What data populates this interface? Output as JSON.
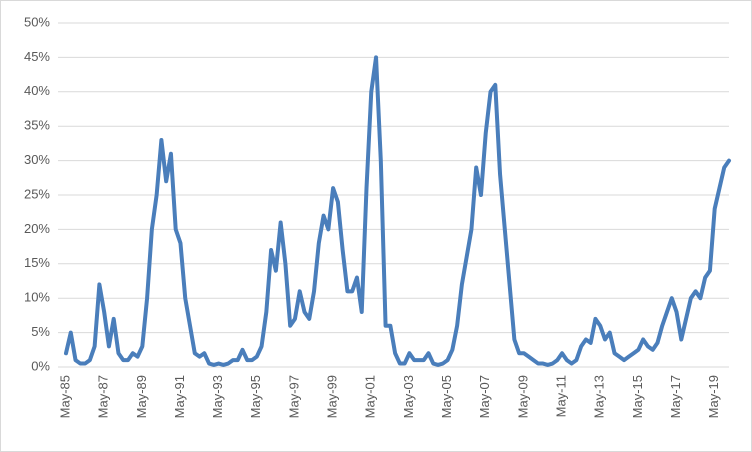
{
  "chart_data": {
    "type": "line",
    "color": "#4a7ebb",
    "grid": true,
    "ylim": [
      0,
      50
    ],
    "yticks": [
      {
        "value": 0,
        "label": "0%"
      },
      {
        "value": 5,
        "label": "5%"
      },
      {
        "value": 10,
        "label": "10%"
      },
      {
        "value": 15,
        "label": "15%"
      },
      {
        "value": 20,
        "label": "20%"
      },
      {
        "value": 25,
        "label": "25%"
      },
      {
        "value": 30,
        "label": "30%"
      },
      {
        "value": 35,
        "label": "35%"
      },
      {
        "value": 40,
        "label": "40%"
      },
      {
        "value": 45,
        "label": "45%"
      },
      {
        "value": 50,
        "label": "50%"
      }
    ],
    "categories": [
      "May-85",
      null,
      null,
      null,
      null,
      null,
      null,
      null,
      "May-87",
      null,
      null,
      null,
      null,
      null,
      null,
      null,
      "May-89",
      null,
      null,
      null,
      null,
      null,
      null,
      null,
      "May-91",
      null,
      null,
      null,
      null,
      null,
      null,
      null,
      "May-93",
      null,
      null,
      null,
      null,
      null,
      null,
      null,
      "May-95",
      null,
      null,
      null,
      null,
      null,
      null,
      null,
      "May-97",
      null,
      null,
      null,
      null,
      null,
      null,
      null,
      "May-99",
      null,
      null,
      null,
      null,
      null,
      null,
      null,
      "May-01",
      null,
      null,
      null,
      null,
      null,
      null,
      null,
      "May-03",
      null,
      null,
      null,
      null,
      null,
      null,
      null,
      "May-05",
      null,
      null,
      null,
      null,
      null,
      null,
      null,
      "May-07",
      null,
      null,
      null,
      null,
      null,
      null,
      null,
      "May-09",
      null,
      null,
      null,
      null,
      null,
      null,
      null,
      "May-11",
      null,
      null,
      null,
      null,
      null,
      null,
      null,
      "May-13",
      null,
      null,
      null,
      null,
      null,
      null,
      null,
      "May-15",
      null,
      null,
      null,
      null,
      null,
      null,
      null,
      "May-17",
      null,
      null,
      null,
      null,
      null,
      null,
      null,
      "May-19",
      null,
      null,
      null
    ],
    "values": [
      2,
      5,
      1,
      0.5,
      0.5,
      1,
      3,
      12,
      8,
      3,
      7,
      2,
      1,
      1,
      2,
      1.5,
      3,
      10,
      20,
      25,
      33,
      27,
      31,
      20,
      18,
      10,
      6,
      2,
      1.5,
      2,
      0.5,
      0.3,
      0.5,
      0.3,
      0.5,
      1,
      1,
      2.5,
      1,
      1,
      1.5,
      3,
      8,
      17,
      14,
      21,
      15,
      6,
      7,
      11,
      8,
      7,
      11,
      18,
      22,
      20,
      26,
      24,
      17,
      11,
      11,
      13,
      8,
      26,
      40,
      45,
      30,
      6,
      6,
      2,
      0.5,
      0.5,
      2,
      1,
      1,
      1,
      2,
      0.5,
      0.3,
      0.5,
      1,
      2.5,
      6,
      12,
      16,
      20,
      29,
      25,
      34,
      40,
      41,
      28,
      20,
      12,
      4,
      2,
      2,
      1.5,
      1,
      0.5,
      0.5,
      0.3,
      0.5,
      1,
      2,
      1,
      0.5,
      1,
      3,
      4,
      3.5,
      7,
      6,
      4,
      5,
      2,
      1.5,
      1,
      1.5,
      2,
      2.5,
      4,
      3,
      2.5,
      3.5,
      6,
      8,
      10,
      8,
      4,
      7,
      10,
      11,
      10,
      13,
      14,
      23,
      26,
      29,
      30
    ]
  }
}
